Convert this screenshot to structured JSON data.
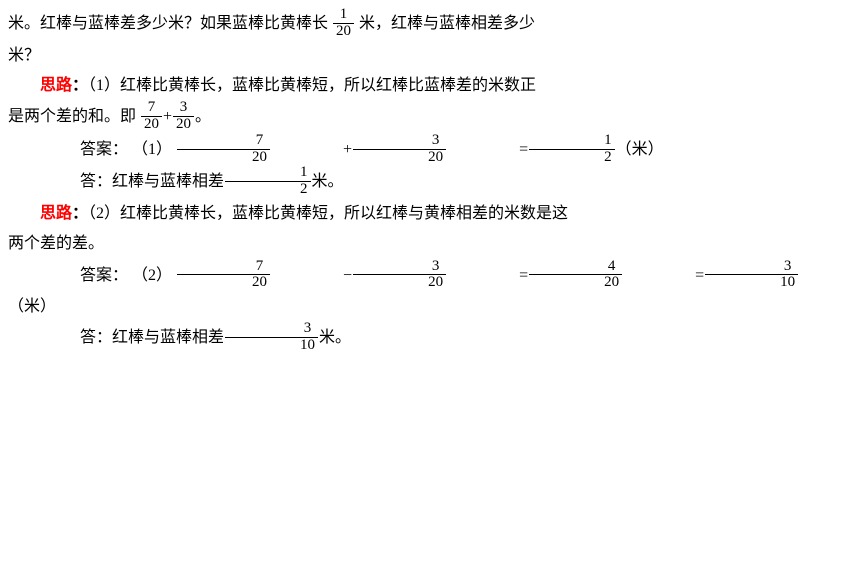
{
  "colors": {
    "text": "#000000",
    "accent": "#ff0000",
    "background": "#ffffff"
  },
  "typography": {
    "body_fontsize": 16,
    "math_fontsize": 15,
    "font_family": "SimSun"
  },
  "fractions": {
    "f1_20": {
      "n": "1",
      "d": "20"
    },
    "f7_20": {
      "n": "7",
      "d": "20"
    },
    "f3_20": {
      "n": "3",
      "d": "20"
    },
    "f1_2": {
      "n": "1",
      "d": "2"
    },
    "f4_20": {
      "n": "4",
      "d": "20"
    },
    "f3_10": {
      "n": "3",
      "d": "10"
    }
  },
  "text": {
    "top_seg1": "米。红棒与蓝棒差多少米？如果蓝棒比黄棒长",
    "top_seg2": "米，红棒与蓝棒相差多少",
    "top_line2": "米？",
    "silu_label": "思路",
    "colon": "：",
    "p1_a": "（1）红棒比黄棒长，蓝棒比黄棒短，所以红棒比蓝棒差的米数正",
    "p1_b_pre": "是两个差的和。即",
    "plus": " + ",
    "period": "。",
    "ans_label": "答案：",
    "ans1_num": "（1）",
    "eq": " = ",
    "unit_m": "（米）",
    "ans1_sentence_pre": "答：红棒与蓝棒相差",
    "ans1_sentence_post": "米。",
    "p2_a": "（2）红棒比黄棒长，蓝棒比黄棒短，所以红棒与黄棒相差的米数是这",
    "p2_b": "两个差的差。",
    "ans2_num": "（2）",
    "minus": " − ",
    "ans2_sentence_pre": "答：红棒与蓝棒相差",
    "ans2_sentence_post": "米。"
  }
}
